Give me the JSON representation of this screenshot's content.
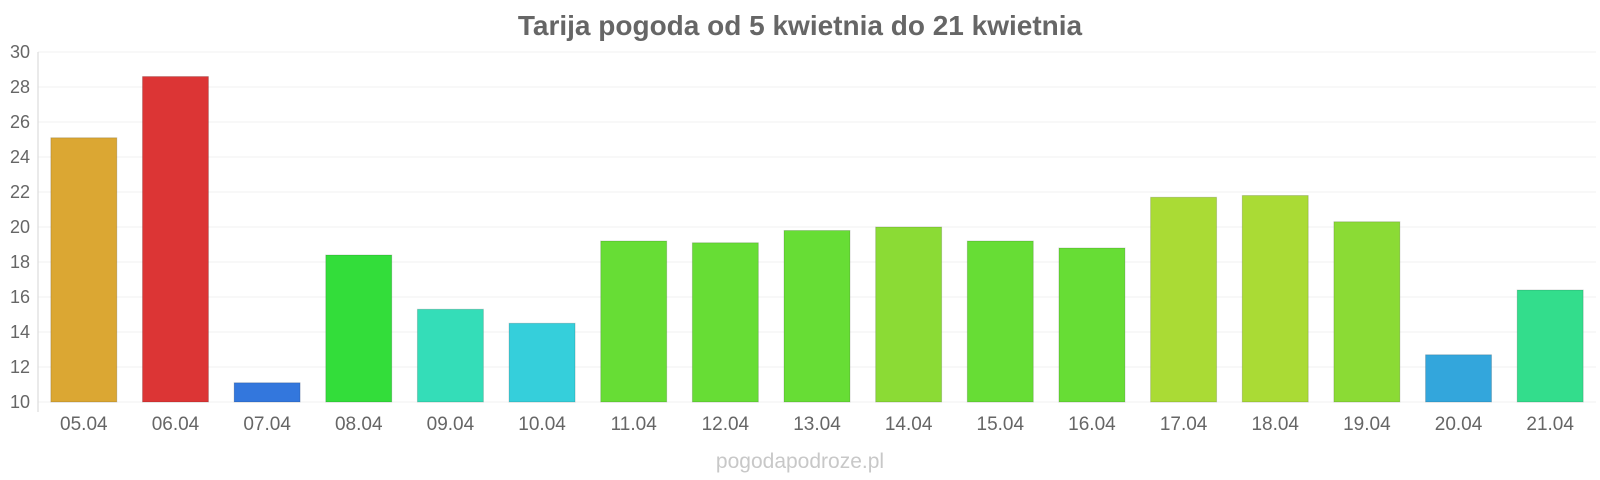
{
  "chart_data": {
    "type": "bar",
    "title": "Tarija pogoda od 5 kwietnia do 21 kwietnia",
    "xlabel": "",
    "ylabel": "",
    "ylim": [
      10,
      30
    ],
    "yticks": [
      10,
      12,
      14,
      16,
      18,
      20,
      22,
      24,
      26,
      28,
      30
    ],
    "grid": true,
    "legend": "none",
    "categories": [
      "05.04",
      "06.04",
      "07.04",
      "08.04",
      "09.04",
      "10.04",
      "11.04",
      "12.04",
      "13.04",
      "14.04",
      "15.04",
      "16.04",
      "17.04",
      "18.04",
      "19.04",
      "20.04",
      "21.04"
    ],
    "values": [
      25.1,
      28.6,
      11.1,
      18.4,
      15.3,
      14.5,
      19.2,
      19.1,
      19.8,
      20.0,
      19.2,
      18.8,
      21.7,
      21.8,
      20.3,
      12.7,
      16.4
    ],
    "colors": [
      "#dba733",
      "#dc3535",
      "#3377dd",
      "#33dd3a",
      "#34ddb8",
      "#35cfdb",
      "#67dd35",
      "#67dd35",
      "#67dd35",
      "#8bdb35",
      "#67dd35",
      "#67dd35",
      "#aadb35",
      "#aadb35",
      "#8bdb35",
      "#33a6dc",
      "#33dd8c"
    ]
  },
  "footer": {
    "watermark": "pogodapodroze.pl"
  }
}
